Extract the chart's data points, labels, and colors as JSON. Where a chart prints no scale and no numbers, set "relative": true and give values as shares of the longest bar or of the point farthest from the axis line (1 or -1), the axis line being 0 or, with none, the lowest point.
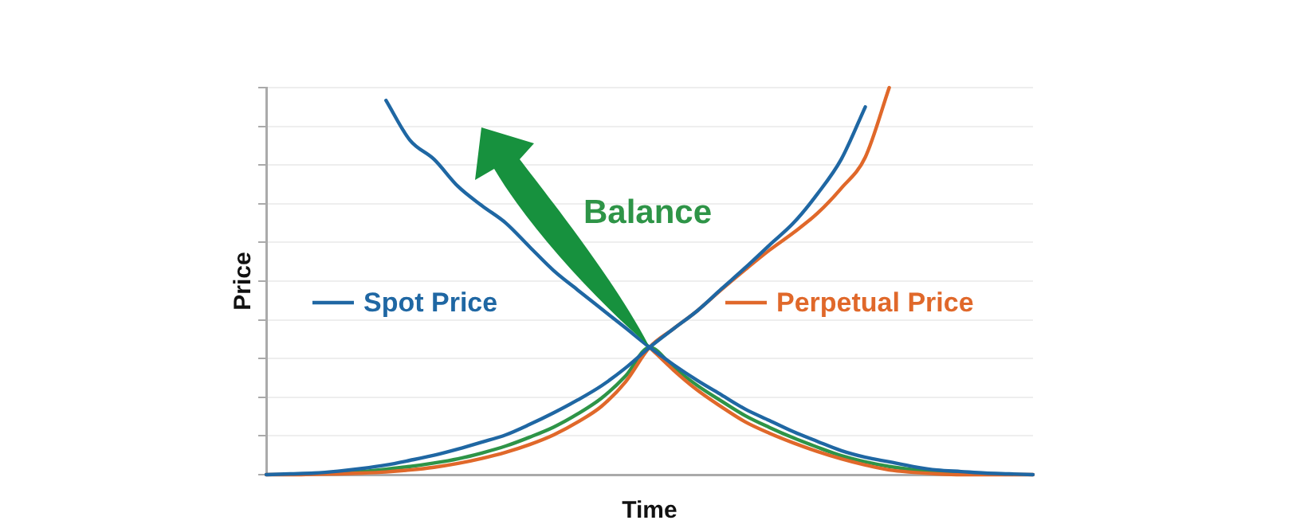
{
  "chart_data": {
    "type": "line",
    "relative": true,
    "xlabel": "Time",
    "ylabel": "Price",
    "grid": "y",
    "legend": "left",
    "marker": "none",
    "line_style": "solid",
    "annotations": [
      "Balance"
    ],
    "categories": [
      null,
      null,
      null,
      null,
      null,
      null,
      null,
      null,
      null,
      null,
      null,
      null,
      null,
      null,
      null,
      null,
      null,
      null,
      null,
      null,
      null,
      null,
      null,
      null,
      null,
      null,
      null,
      null,
      null,
      null,
      null,
      null,
      null
    ],
    "series": [
      {
        "name": "Spot Price",
        "color": "#1f67a3",
        "values": [
          0,
          0.002,
          0.004,
          0.009,
          0.016,
          0.025,
          0.037,
          0.05,
          0.066,
          0.084,
          0.103,
          0.13,
          0.16,
          0.193,
          0.23,
          0.276,
          0.329,
          0.377,
          0.424,
          0.48,
          0.535,
          0.593,
          0.65,
          0.725,
          0.815,
          0.95,
          null,
          null,
          null,
          null,
          null,
          null,
          null
        ]
      },
      {
        "color": "#1f67a3",
        "values": [
          null,
          null,
          null,
          null,
          null,
          0.967,
          0.864,
          0.815,
          0.745,
          0.695,
          0.65,
          0.588,
          0.527,
          0.477,
          0.428,
          0.379,
          0.329,
          0.284,
          0.243,
          0.206,
          0.169,
          0.14,
          0.111,
          0.086,
          0.062,
          0.045,
          0.033,
          0.021,
          0.012,
          0.008,
          0.004,
          0.002,
          0
        ]
      },
      {
        "name": "Perpetual Price",
        "color": "#e0682a",
        "values": [
          0,
          0,
          0.001,
          0.002,
          0.004,
          0.007,
          0.012,
          0.019,
          0.029,
          0.042,
          0.058,
          0.078,
          0.103,
          0.136,
          0.177,
          0.24,
          0.329,
          0.377,
          0.424,
          0.478,
          0.53,
          0.58,
          0.625,
          0.675,
          0.74,
          0.82,
          1,
          null,
          null,
          null,
          null,
          null,
          null
        ]
      },
      {
        "color": "#e0682a",
        "values": [
          null,
          null,
          null,
          null,
          null,
          null,
          null,
          null,
          null,
          null,
          null,
          null,
          null,
          null,
          null,
          null,
          0.329,
          0.27,
          0.218,
          0.175,
          0.136,
          0.107,
          0.082,
          0.06,
          0.041,
          0.025,
          0.012,
          0.006,
          0.002,
          0,
          0,
          0,
          0
        ]
      },
      {
        "color": "#2e9447",
        "values": [
          null,
          null,
          null,
          0.004,
          0.008,
          0.014,
          0.021,
          0.03,
          0.041,
          0.056,
          0.074,
          0.097,
          0.123,
          0.157,
          0.198,
          0.255,
          0.329,
          0.277,
          0.23,
          0.19,
          0.152,
          0.122,
          0.095,
          0.071,
          0.049,
          0.033,
          0.021,
          0.013,
          0.008,
          0.004,
          0.002,
          null,
          null
        ]
      }
    ]
  }
}
